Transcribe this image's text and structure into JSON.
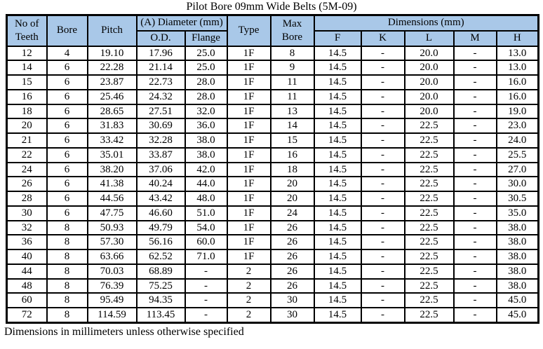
{
  "title": "Pilot Bore 09mm Wide Belts (5M-09)",
  "footnote": "Dimensions in millimeters unless otherwise specified",
  "colors": {
    "header_bg": "#A9C8E8",
    "border": "#000000",
    "text": "#000000",
    "page_bg": "#FFFFFF"
  },
  "table": {
    "header": {
      "no_of_teeth": "No of Teeth",
      "bore": "Bore",
      "pitch": "Pitch",
      "diameter_group": "(A) Diameter (mm)",
      "od": "O.D.",
      "flange": "Flange",
      "type": "Type",
      "max_bore": "Max Bore",
      "dimensions_group": "Dimensions (mm)",
      "f": "F",
      "k": "K",
      "l": "L",
      "m": "M",
      "h": "H"
    },
    "rows": [
      [
        "12",
        "4",
        "19.10",
        "17.96",
        "25.0",
        "1F",
        "8",
        "14.5",
        "-",
        "20.0",
        "-",
        "13.0"
      ],
      [
        "14",
        "6",
        "22.28",
        "21.14",
        "25.0",
        "1F",
        "9",
        "14.5",
        "-",
        "20.0",
        "-",
        "13.0"
      ],
      [
        "15",
        "6",
        "23.87",
        "22.73",
        "28.0",
        "1F",
        "11",
        "14.5",
        "-",
        "20.0",
        "-",
        "16.0"
      ],
      [
        "16",
        "6",
        "25.46",
        "24.32",
        "28.0",
        "1F",
        "11",
        "14.5",
        "-",
        "20.0",
        "-",
        "16.0"
      ],
      [
        "18",
        "6",
        "28.65",
        "27.51",
        "32.0",
        "1F",
        "13",
        "14.5",
        "-",
        "20.0",
        "-",
        "19.0"
      ],
      [
        "20",
        "6",
        "31.83",
        "30.69",
        "36.0",
        "1F",
        "14",
        "14.5",
        "-",
        "22.5",
        "-",
        "23.0"
      ],
      [
        "21",
        "6",
        "33.42",
        "32.28",
        "38.0",
        "1F",
        "15",
        "14.5",
        "-",
        "22.5",
        "-",
        "24.0"
      ],
      [
        "22",
        "6",
        "35.01",
        "33.87",
        "38.0",
        "1F",
        "16",
        "14.5",
        "-",
        "22.5",
        "-",
        "25.5"
      ],
      [
        "24",
        "6",
        "38.20",
        "37.06",
        "42.0",
        "1F",
        "18",
        "14.5",
        "-",
        "22.5",
        "-",
        "27.0"
      ],
      [
        "26",
        "6",
        "41.38",
        "40.24",
        "44.0",
        "1F",
        "20",
        "14.5",
        "-",
        "22.5",
        "-",
        "30.0"
      ],
      [
        "28",
        "6",
        "44.56",
        "43.42",
        "48.0",
        "1F",
        "20",
        "14.5",
        "-",
        "22.5",
        "-",
        "30.5"
      ],
      [
        "30",
        "6",
        "47.75",
        "46.60",
        "51.0",
        "1F",
        "24",
        "14.5",
        "-",
        "22.5",
        "-",
        "35.0"
      ],
      [
        "32",
        "8",
        "50.93",
        "49.79",
        "54.0",
        "1F",
        "26",
        "14.5",
        "-",
        "22.5",
        "-",
        "38.0"
      ],
      [
        "36",
        "8",
        "57.30",
        "56.16",
        "60.0",
        "1F",
        "26",
        "14.5",
        "-",
        "22.5",
        "-",
        "38.0"
      ],
      [
        "40",
        "8",
        "63.66",
        "62.52",
        "71.0",
        "1F",
        "26",
        "14.5",
        "-",
        "22.5",
        "-",
        "38.0"
      ],
      [
        "44",
        "8",
        "70.03",
        "68.89",
        "-",
        "2",
        "26",
        "14.5",
        "-",
        "22.5",
        "-",
        "38.0"
      ],
      [
        "48",
        "8",
        "76.39",
        "75.25",
        "-",
        "2",
        "26",
        "14.5",
        "-",
        "22.5",
        "-",
        "38.0"
      ],
      [
        "60",
        "8",
        "95.49",
        "94.35",
        "-",
        "2",
        "30",
        "14.5",
        "-",
        "22.5",
        "-",
        "45.0"
      ],
      [
        "72",
        "8",
        "114.59",
        "113.45",
        "-",
        "2",
        "30",
        "14.5",
        "-",
        "22.5",
        "-",
        "45.0"
      ]
    ]
  }
}
